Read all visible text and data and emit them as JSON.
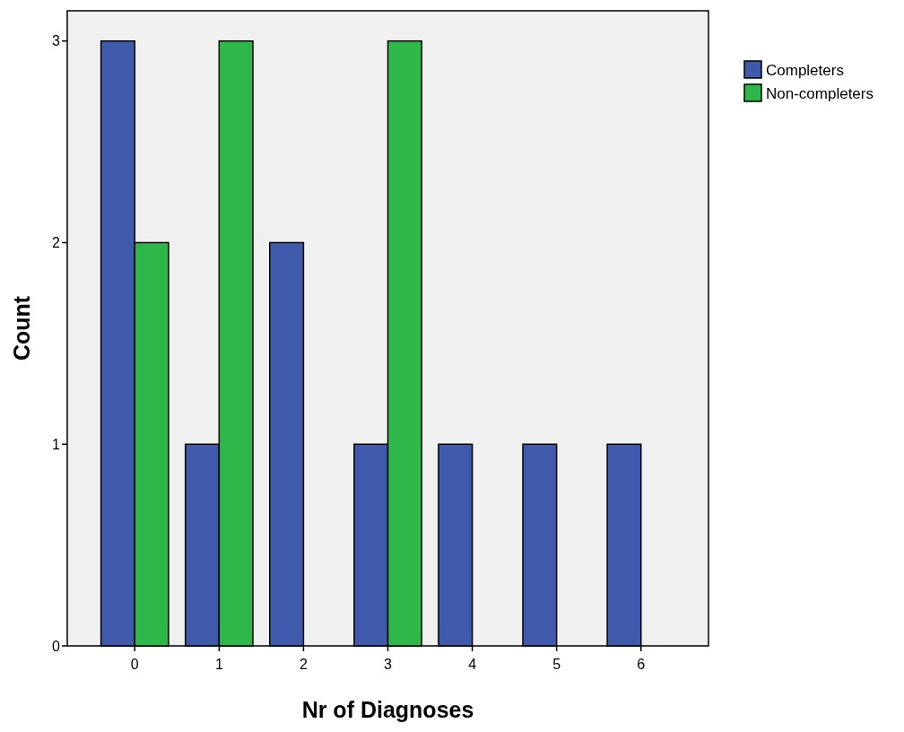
{
  "chart_data": {
    "type": "bar",
    "xlabel": "Nr of Diagnoses",
    "ylabel": "Count",
    "categories": [
      "0",
      "1",
      "2",
      "3",
      "4",
      "5",
      "6"
    ],
    "series": [
      {
        "name": "Completers",
        "color": "#3f59ab",
        "values": [
          3,
          1,
          2,
          1,
          1,
          1,
          1
        ]
      },
      {
        "name": "Non-completers",
        "color": "#2eb84a",
        "values": [
          2,
          3,
          null,
          3,
          null,
          null,
          null
        ]
      }
    ],
    "ylim": [
      0,
      3.15
    ],
    "yticks": [
      0,
      1,
      2,
      3
    ],
    "grid": false,
    "legend": "top right"
  }
}
